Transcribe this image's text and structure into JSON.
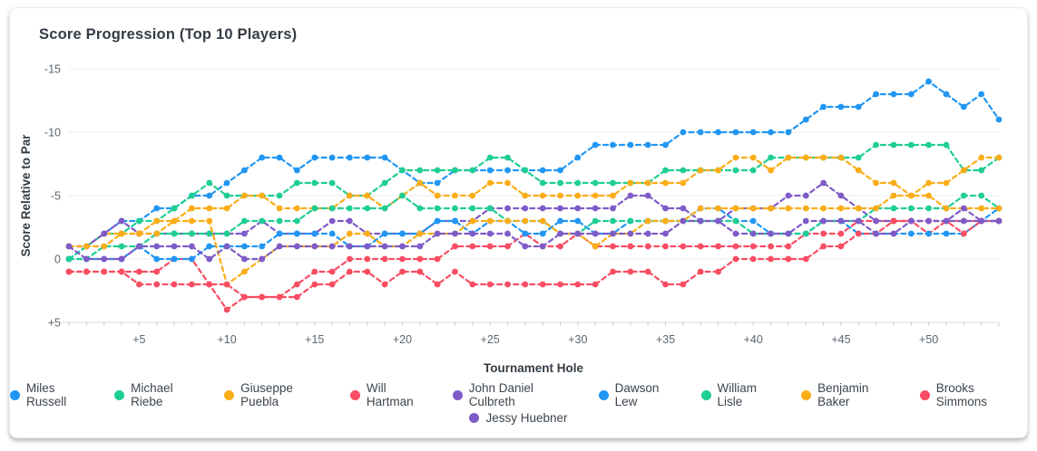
{
  "card": {
    "title": "Score Progression (Top 10 Players)"
  },
  "chart_data": {
    "type": "line",
    "title": "Score Progression (Top 10 Players)",
    "x_label": "Tournament Hole",
    "y_label": "Score Relative to Par",
    "x_domain": [
      1,
      54
    ],
    "y_domain": [
      -15,
      5
    ],
    "y_axis_inverted": true,
    "grid": "horizontal-only",
    "line_style": "dashed with circular point markers",
    "legend_position": "bottom-center, two rows",
    "y_ticks": [
      {
        "value": -15,
        "label": "-15"
      },
      {
        "value": -10,
        "label": "-10"
      },
      {
        "value": -5,
        "label": "-5"
      },
      {
        "value": 0,
        "label": "0"
      },
      {
        "value": 5,
        "label": "+5"
      }
    ],
    "x_ticks": [
      {
        "value": 5,
        "label": "+5"
      },
      {
        "value": 10,
        "label": "+10"
      },
      {
        "value": 15,
        "label": "+15"
      },
      {
        "value": 20,
        "label": "+20"
      },
      {
        "value": 25,
        "label": "+25"
      },
      {
        "value": 30,
        "label": "+30"
      },
      {
        "value": 35,
        "label": "+35"
      },
      {
        "value": 40,
        "label": "+40"
      },
      {
        "value": 45,
        "label": "+45"
      },
      {
        "value": 50,
        "label": "+50"
      }
    ],
    "palette": {
      "blue": "#2196f3",
      "green": "#1fce93",
      "orange": "#fbad18",
      "red": "#f94d63",
      "purple": "#7e5bc8"
    },
    "series": [
      {
        "name": "Miles Russell",
        "color": "#2196f3",
        "values": [
          0,
          -1,
          -2,
          -3,
          -3,
          -4,
          -4,
          -5,
          -5,
          -6,
          -7,
          -8,
          -8,
          -7,
          -8,
          -8,
          -8,
          -8,
          -8,
          -7,
          -6,
          -6,
          -7,
          -7,
          -7,
          -7,
          -7,
          -7,
          -7,
          -8,
          -9,
          -9,
          -9,
          -9,
          -9,
          -10,
          -10,
          -10,
          -10,
          -10,
          -10,
          -10,
          -11,
          -12,
          -12,
          -12,
          -13,
          -13,
          -13,
          -14,
          -13,
          -12,
          -13,
          -11
        ]
      },
      {
        "name": "Michael Riebe",
        "color": "#1fce93",
        "values": [
          0,
          -1,
          -2,
          -2,
          -3,
          -3,
          -4,
          -5,
          -6,
          -5,
          -5,
          -5,
          -5,
          -6,
          -6,
          -6,
          -5,
          -5,
          -6,
          -7,
          -7,
          -7,
          -7,
          -7,
          -8,
          -8,
          -7,
          -6,
          -6,
          -6,
          -6,
          -6,
          -6,
          -6,
          -7,
          -7,
          -7,
          -7,
          -7,
          -7,
          -8,
          -8,
          -8,
          -8,
          -8,
          -8,
          -9,
          -9,
          -9,
          -9,
          -9,
          -7,
          -7,
          -8
        ]
      },
      {
        "name": "Giuseppe Puebla",
        "color": "#fbad18",
        "values": [
          -1,
          -1,
          -2,
          -2,
          -2,
          -3,
          -3,
          -4,
          -4,
          -4,
          -5,
          -5,
          -4,
          -4,
          -4,
          -4,
          -5,
          -5,
          -4,
          -5,
          -6,
          -5,
          -5,
          -5,
          -6,
          -6,
          -5,
          -5,
          -5,
          -5,
          -5,
          -5,
          -6,
          -6,
          -6,
          -6,
          -7,
          -7,
          -8,
          -8,
          -7,
          -8,
          -8,
          -8,
          -8,
          -7,
          -6,
          -6,
          -5,
          -6,
          -6,
          -7,
          -8,
          -8
        ]
      },
      {
        "name": "Will Hartman",
        "color": "#f94d63",
        "values": [
          1,
          1,
          1,
          1,
          1,
          1,
          0,
          0,
          2,
          4,
          3,
          3,
          3,
          2,
          1,
          1,
          0,
          0,
          0,
          0,
          0,
          0,
          -1,
          -1,
          -1,
          -1,
          -2,
          -1,
          -1,
          -2,
          -1,
          -1,
          -1,
          -1,
          -1,
          -1,
          -1,
          -1,
          -1,
          -1,
          -1,
          -1,
          -2,
          -2,
          -2,
          -3,
          -3,
          -3,
          -3,
          -2,
          -3,
          -3,
          -3,
          -3
        ]
      },
      {
        "name": "John Daniel Culbreth",
        "color": "#7e5bc8",
        "values": [
          -1,
          -1,
          -2,
          -3,
          -2,
          -2,
          -2,
          -2,
          -2,
          -2,
          -2,
          -3,
          -2,
          -2,
          -2,
          -3,
          -3,
          -2,
          -2,
          -2,
          -2,
          -3,
          -3,
          -3,
          -4,
          -4,
          -4,
          -4,
          -4,
          -4,
          -4,
          -4,
          -5,
          -5,
          -4,
          -4,
          -3,
          -3,
          -4,
          -4,
          -4,
          -5,
          -5,
          -6,
          -5,
          -4,
          -3,
          -3,
          -3,
          -3,
          -3,
          -3,
          -3,
          -3
        ]
      },
      {
        "name": "Dawson Lew",
        "color": "#2196f3",
        "values": [
          0,
          0,
          0,
          0,
          -1,
          0,
          0,
          0,
          -1,
          -1,
          -1,
          -1,
          -2,
          -2,
          -2,
          -2,
          -1,
          -1,
          -2,
          -2,
          -2,
          -3,
          -3,
          -2,
          -3,
          -3,
          -2,
          -2,
          -3,
          -3,
          -2,
          -2,
          -3,
          -3,
          -3,
          -3,
          -4,
          -4,
          -3,
          -3,
          -2,
          -2,
          -2,
          -3,
          -3,
          -2,
          -2,
          -2,
          -2,
          -2,
          -2,
          -2,
          -3,
          -4
        ]
      },
      {
        "name": "William Lisle",
        "color": "#1fce93",
        "values": [
          0,
          0,
          -1,
          -1,
          -1,
          -2,
          -2,
          -2,
          -2,
          -2,
          -3,
          -3,
          -3,
          -3,
          -4,
          -4,
          -4,
          -4,
          -4,
          -5,
          -4,
          -4,
          -4,
          -4,
          -4,
          -3,
          -3,
          -3,
          -2,
          -2,
          -3,
          -3,
          -3,
          -3,
          -3,
          -3,
          -3,
          -3,
          -3,
          -2,
          -2,
          -2,
          -2,
          -3,
          -3,
          -3,
          -4,
          -4,
          -4,
          -4,
          -4,
          -5,
          -5,
          -4
        ]
      },
      {
        "name": "Benjamin Baker",
        "color": "#fbad18",
        "values": [
          -1,
          -1,
          -1,
          -2,
          -2,
          -2,
          -3,
          -3,
          -3,
          2,
          1,
          0,
          -1,
          -1,
          -1,
          -1,
          -2,
          -2,
          -1,
          -1,
          -2,
          -2,
          -2,
          -3,
          -3,
          -3,
          -3,
          -3,
          -2,
          -2,
          -1,
          -2,
          -2,
          -3,
          -3,
          -3,
          -4,
          -4,
          -4,
          -4,
          -4,
          -4,
          -4,
          -4,
          -4,
          -4,
          -4,
          -5,
          -5,
          -5,
          -4,
          -4,
          -4,
          -4
        ]
      },
      {
        "name": "Brooks Simmons",
        "color": "#f94d63",
        "values": [
          1,
          1,
          1,
          1,
          2,
          2,
          2,
          2,
          2,
          2,
          3,
          3,
          3,
          3,
          2,
          2,
          1,
          1,
          2,
          1,
          1,
          2,
          1,
          2,
          2,
          2,
          2,
          2,
          2,
          2,
          2,
          1,
          1,
          1,
          2,
          2,
          1,
          1,
          0,
          0,
          0,
          0,
          0,
          -1,
          -1,
          -2,
          -2,
          -3,
          -3,
          -3,
          -3,
          -2,
          -3,
          -3
        ]
      },
      {
        "name": "Jessy Huebner",
        "color": "#7e5bc8",
        "values": [
          -1,
          0,
          0,
          0,
          -1,
          -1,
          -1,
          -1,
          0,
          -1,
          0,
          0,
          -1,
          -1,
          -1,
          -1,
          -1,
          -1,
          -1,
          -1,
          -1,
          -2,
          -2,
          -2,
          -2,
          -2,
          -1,
          -1,
          -2,
          -2,
          -2,
          -2,
          -2,
          -2,
          -2,
          -3,
          -3,
          -3,
          -2,
          -2,
          -2,
          -2,
          -3,
          -3,
          -3,
          -3,
          -2,
          -2,
          -3,
          -3,
          -3,
          -4,
          -3,
          -3
        ]
      }
    ]
  }
}
